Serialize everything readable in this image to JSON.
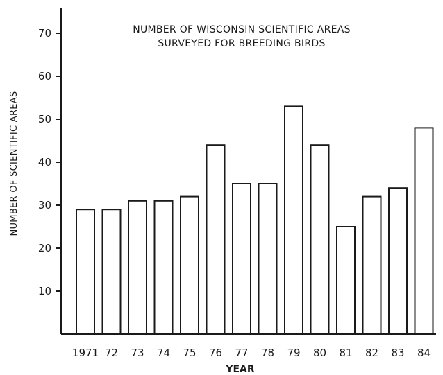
{
  "chart_data": {
    "type": "bar",
    "title": [
      "NUMBER OF WISCONSIN SCIENTIFIC AREAS",
      "SURVEYED FOR BREEDING BIRDS"
    ],
    "xlabel": "YEAR",
    "ylabel": "NUMBER OF SCIENTIFIC AREAS",
    "categories": [
      "1971",
      "72",
      "73",
      "74",
      "75",
      "76",
      "77",
      "78",
      "79",
      "80",
      "81",
      "82",
      "83",
      "84"
    ],
    "values": [
      29,
      29,
      31,
      31,
      32,
      44,
      35,
      35,
      53,
      44,
      25,
      32,
      34,
      48
    ],
    "ylim": [
      0,
      70
    ],
    "yticks": [
      10,
      20,
      30,
      40,
      50,
      60,
      70
    ],
    "grid": false,
    "colors": {
      "bar_fill": "#ffffff",
      "bar_stroke": "#1a1a1a"
    }
  }
}
